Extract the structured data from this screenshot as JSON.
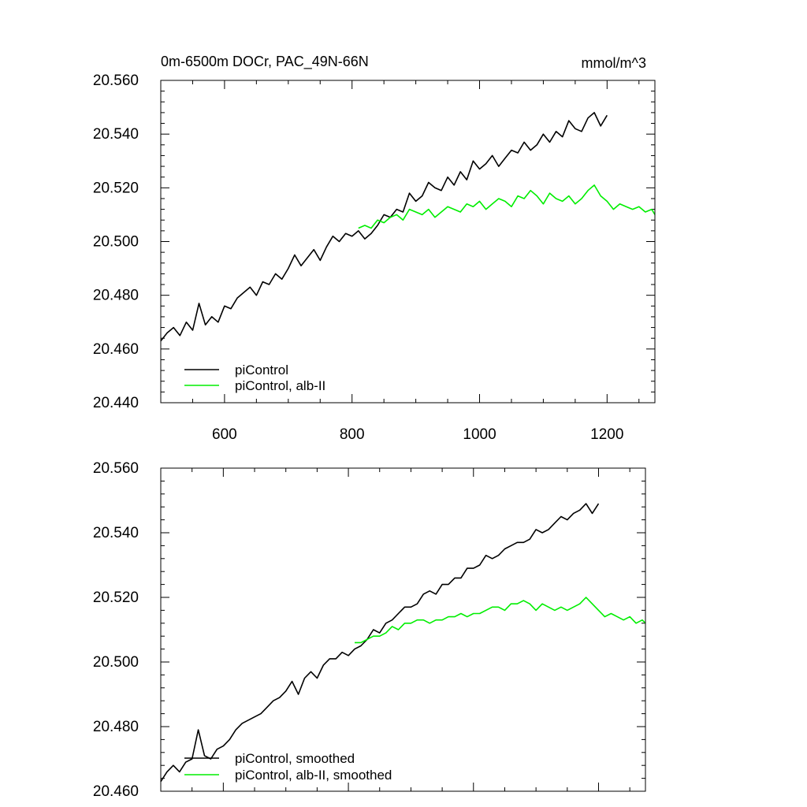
{
  "chart_data": [
    {
      "type": "line",
      "title_left": "0m-6500m DOCr, PAC_49N-66N",
      "title_right": "mmol/m^3",
      "xlabel": "",
      "ylabel": "",
      "xlim": [
        500,
        1275
      ],
      "ylim": [
        20.44,
        20.56
      ],
      "x_ticks": [
        600,
        800,
        1000,
        1200
      ],
      "x_tick_labels": [
        "600",
        "800",
        "1000",
        "1200"
      ],
      "y_ticks": [
        20.44,
        20.46,
        20.48,
        20.5,
        20.52,
        20.54,
        20.56
      ],
      "y_tick_labels": [
        "20.440",
        "20.460",
        "20.480",
        "20.500",
        "20.520",
        "20.540",
        "20.560"
      ],
      "legend_position": "bottom-left",
      "series": [
        {
          "name": "piControl",
          "color": "#000000",
          "x": [
            500,
            510,
            520,
            530,
            540,
            550,
            560,
            570,
            580,
            590,
            600,
            610,
            620,
            630,
            640,
            650,
            660,
            670,
            680,
            690,
            700,
            710,
            720,
            730,
            740,
            750,
            760,
            770,
            780,
            790,
            800,
            810,
            820,
            830,
            840,
            850,
            860,
            870,
            880,
            890,
            900,
            910,
            920,
            930,
            940,
            950,
            960,
            970,
            980,
            990,
            1000,
            1010,
            1020,
            1030,
            1040,
            1050,
            1060,
            1070,
            1080,
            1090,
            1100,
            1110,
            1120,
            1130,
            1140,
            1150,
            1160,
            1170,
            1180,
            1190,
            1200
          ],
          "y": [
            20.463,
            20.466,
            20.468,
            20.465,
            20.47,
            20.467,
            20.477,
            20.469,
            20.472,
            20.47,
            20.476,
            20.475,
            20.479,
            20.481,
            20.483,
            20.48,
            20.485,
            20.484,
            20.488,
            20.486,
            20.49,
            20.495,
            20.491,
            20.494,
            20.497,
            20.493,
            20.498,
            20.502,
            20.5,
            20.503,
            20.502,
            20.504,
            20.501,
            20.503,
            20.506,
            20.51,
            20.509,
            20.512,
            20.511,
            20.518,
            20.515,
            20.517,
            20.522,
            20.52,
            20.519,
            20.524,
            20.521,
            20.526,
            20.523,
            20.53,
            20.527,
            20.529,
            20.532,
            20.528,
            20.531,
            20.534,
            20.533,
            20.537,
            20.534,
            20.536,
            20.54,
            20.537,
            20.541,
            20.539,
            20.545,
            20.542,
            20.541,
            20.546,
            20.548,
            20.543,
            20.547
          ]
        },
        {
          "name": "piControl, alb-II",
          "color": "#00ee00",
          "x": [
            810,
            820,
            830,
            840,
            850,
            860,
            870,
            880,
            890,
            900,
            910,
            920,
            930,
            940,
            950,
            960,
            970,
            980,
            990,
            1000,
            1010,
            1020,
            1030,
            1040,
            1050,
            1060,
            1070,
            1080,
            1090,
            1100,
            1110,
            1120,
            1130,
            1140,
            1150,
            1160,
            1170,
            1180,
            1190,
            1200,
            1210,
            1220,
            1230,
            1240,
            1250,
            1260,
            1270,
            1275
          ],
          "y": [
            20.505,
            20.506,
            20.505,
            20.508,
            20.507,
            20.509,
            20.51,
            20.508,
            20.512,
            20.511,
            20.51,
            20.512,
            20.509,
            20.511,
            20.513,
            20.512,
            20.511,
            20.514,
            20.513,
            20.515,
            20.512,
            20.514,
            20.516,
            20.515,
            20.513,
            20.517,
            20.516,
            20.519,
            20.517,
            20.514,
            20.518,
            20.516,
            20.515,
            20.517,
            20.514,
            20.516,
            20.519,
            20.521,
            20.517,
            20.515,
            20.512,
            20.514,
            20.513,
            20.512,
            20.513,
            20.511,
            20.512,
            20.51
          ]
        }
      ]
    },
    {
      "type": "line",
      "title": "",
      "xlabel": "",
      "ylabel": "",
      "xlim": [
        500,
        1275
      ],
      "ylim": [
        20.46,
        20.56
      ],
      "x_ticks": [
        600,
        800,
        1000,
        1200
      ],
      "x_tick_labels": [
        "",
        "",
        "",
        ""
      ],
      "y_ticks": [
        20.46,
        20.48,
        20.5,
        20.52,
        20.54,
        20.56
      ],
      "y_tick_labels": [
        "20.460",
        "20.480",
        "20.500",
        "20.520",
        "20.540",
        "20.560"
      ],
      "legend_position": "bottom-left",
      "series": [
        {
          "name": "piControl, smoothed",
          "color": "#000000",
          "x": [
            500,
            510,
            520,
            530,
            540,
            550,
            560,
            570,
            580,
            590,
            600,
            610,
            620,
            630,
            640,
            650,
            660,
            670,
            680,
            690,
            700,
            710,
            720,
            730,
            740,
            750,
            760,
            770,
            780,
            790,
            800,
            810,
            820,
            830,
            840,
            850,
            860,
            870,
            880,
            890,
            900,
            910,
            920,
            930,
            940,
            950,
            960,
            970,
            980,
            990,
            1000,
            1010,
            1020,
            1030,
            1040,
            1050,
            1060,
            1070,
            1080,
            1090,
            1100,
            1110,
            1120,
            1130,
            1140,
            1150,
            1160,
            1170,
            1180,
            1190,
            1200
          ],
          "y": [
            20.463,
            20.466,
            20.468,
            20.466,
            20.469,
            20.47,
            20.479,
            20.471,
            20.47,
            20.473,
            20.474,
            20.476,
            20.479,
            20.481,
            20.482,
            20.483,
            20.484,
            20.486,
            20.488,
            20.489,
            20.491,
            20.494,
            20.49,
            20.495,
            20.497,
            20.495,
            20.499,
            20.501,
            20.501,
            20.503,
            20.502,
            20.504,
            20.505,
            20.507,
            20.51,
            20.509,
            20.512,
            20.513,
            20.515,
            20.517,
            20.517,
            20.518,
            20.521,
            20.522,
            20.521,
            20.524,
            20.524,
            20.526,
            20.526,
            20.529,
            20.529,
            20.53,
            20.533,
            20.532,
            20.533,
            20.535,
            20.536,
            20.537,
            20.537,
            20.538,
            20.541,
            20.54,
            20.541,
            20.543,
            20.545,
            20.544,
            20.546,
            20.547,
            20.549,
            20.546,
            20.549
          ]
        },
        {
          "name": "piControl, alb-II, smoothed",
          "color": "#00ee00",
          "x": [
            810,
            820,
            830,
            840,
            850,
            860,
            870,
            880,
            890,
            900,
            910,
            920,
            930,
            940,
            950,
            960,
            970,
            980,
            990,
            1000,
            1010,
            1020,
            1030,
            1040,
            1050,
            1060,
            1070,
            1080,
            1090,
            1100,
            1110,
            1120,
            1130,
            1140,
            1150,
            1160,
            1170,
            1180,
            1190,
            1200,
            1210,
            1220,
            1230,
            1240,
            1250,
            1260,
            1270,
            1275
          ],
          "y": [
            20.506,
            20.506,
            20.507,
            20.508,
            20.508,
            20.509,
            20.511,
            20.51,
            20.512,
            20.512,
            20.513,
            20.513,
            20.512,
            20.513,
            20.513,
            20.514,
            20.514,
            20.515,
            20.514,
            20.515,
            20.515,
            20.516,
            20.517,
            20.517,
            20.516,
            20.518,
            20.518,
            20.519,
            20.518,
            20.516,
            20.518,
            20.517,
            20.516,
            20.517,
            20.516,
            20.517,
            20.518,
            20.52,
            20.518,
            20.516,
            20.514,
            20.515,
            20.514,
            20.513,
            20.514,
            20.512,
            20.513,
            20.512
          ]
        }
      ]
    }
  ]
}
